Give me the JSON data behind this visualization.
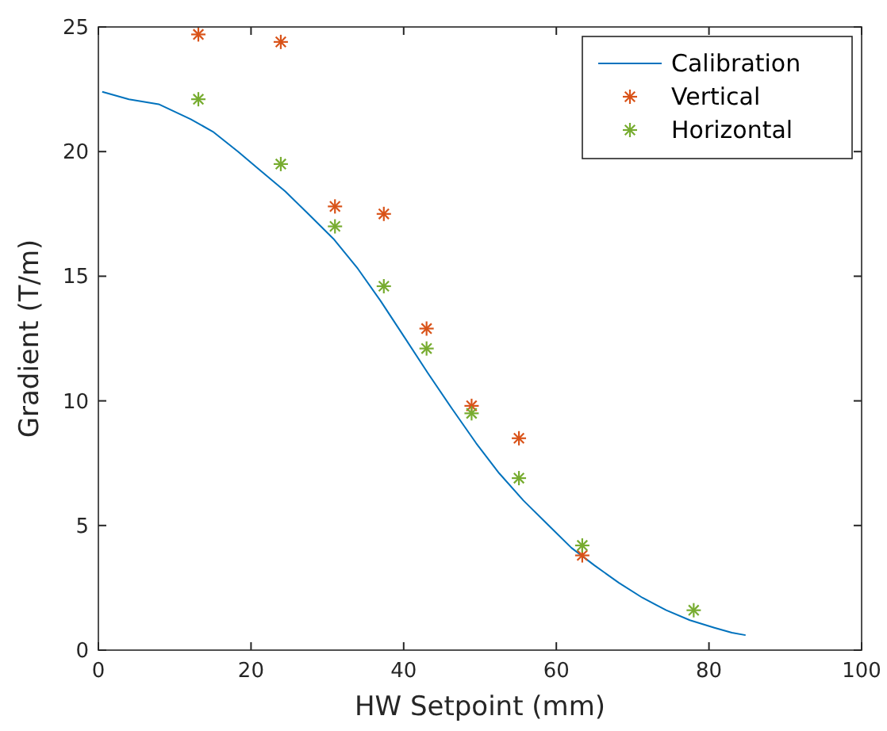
{
  "chart_data": {
    "type": "line",
    "xlabel": "HW Setpoint (mm)",
    "ylabel": "Gradient (T/m)",
    "xlim": [
      0,
      100
    ],
    "ylim": [
      0,
      25
    ],
    "xticks": [
      0,
      20,
      40,
      60,
      80,
      100
    ],
    "yticks": [
      0,
      5,
      10,
      15,
      20,
      25
    ],
    "grid": false,
    "legend": "top right",
    "series": [
      {
        "name": "Calibration",
        "color": "#0072bd",
        "marker": "none",
        "line_style": "solid",
        "x": [
          0.5,
          4,
          7.9,
          12.1,
          15,
          18.3,
          21,
          24.5,
          27.5,
          30.8,
          34,
          37,
          40,
          43.2,
          46.3,
          49.5,
          52.5,
          55.7,
          59,
          62,
          65,
          68.2,
          71.3,
          74.4,
          77.5,
          80.7,
          83,
          84.8
        ],
        "values": [
          22.4,
          22.1,
          21.9,
          21.3,
          20.8,
          20.0,
          19.3,
          18.4,
          17.5,
          16.5,
          15.3,
          14.0,
          12.6,
          11.1,
          9.7,
          8.3,
          7.1,
          6.0,
          5.0,
          4.1,
          3.4,
          2.7,
          2.1,
          1.6,
          1.2,
          0.9,
          0.7,
          0.6
        ]
      },
      {
        "name": "Vertical",
        "type": "scatter",
        "color": "#d95319",
        "marker": "cross",
        "x": [
          13.1,
          23.9,
          31.0,
          37.4,
          43.0,
          48.9,
          55.1,
          63.4
        ],
        "values": [
          24.7,
          24.4,
          17.8,
          17.5,
          12.9,
          9.8,
          8.5,
          3.8
        ]
      },
      {
        "name": "Horizontal",
        "type": "scatter",
        "color": "#77ac30",
        "marker": "cross",
        "x": [
          13.1,
          23.9,
          31.0,
          37.4,
          43.0,
          48.9,
          55.1,
          63.4,
          78.0
        ],
        "values": [
          22.1,
          19.5,
          17.0,
          14.6,
          12.1,
          9.5,
          6.9,
          4.2,
          1.6
        ]
      }
    ]
  }
}
